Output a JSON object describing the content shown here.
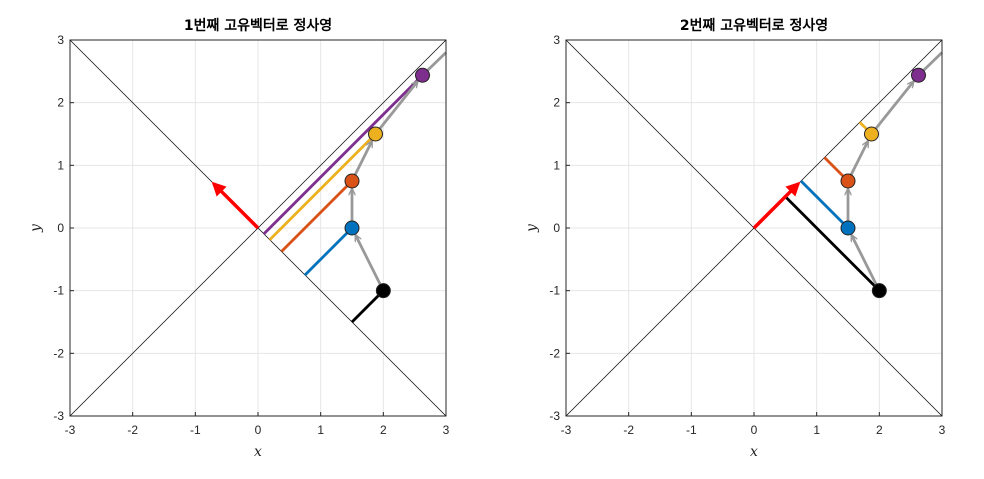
{
  "chart_data": [
    {
      "type": "line",
      "title": "1번째 고유벡터로 정사영",
      "xlabel": "x",
      "ylabel": "y",
      "xlim": [
        -3,
        3
      ],
      "ylim": [
        -3,
        3
      ],
      "xticks": [
        -3,
        -2,
        -1,
        0,
        1,
        2,
        3
      ],
      "yticks": [
        -3,
        -2,
        -1,
        0,
        1,
        2,
        3
      ],
      "grid": true,
      "eigenlines": [
        {
          "slope": 1
        },
        {
          "slope": -1
        }
      ],
      "arrow": {
        "from": [
          0,
          0
        ],
        "to": [
          -0.7071,
          0.7071
        ],
        "color": "#ff0000"
      },
      "trajectory": {
        "color": "#999999",
        "points": [
          [
            2,
            -1
          ],
          [
            1.5,
            0
          ],
          [
            1.5,
            0.75
          ],
          [
            1.875,
            1.5
          ],
          [
            2.625,
            2.4375
          ]
        ],
        "extension_to": [
          3,
          2.8
        ]
      },
      "states": [
        {
          "x": 2,
          "y": -1,
          "color": "#000000",
          "proj": [
            1.5,
            -1.5
          ]
        },
        {
          "x": 1.5,
          "y": 0,
          "color": "#0072bd",
          "proj": [
            0.75,
            -0.75
          ]
        },
        {
          "x": 1.5,
          "y": 0.75,
          "color": "#d95319",
          "proj": [
            0.375,
            -0.375
          ]
        },
        {
          "x": 1.875,
          "y": 1.5,
          "color": "#edb120",
          "proj": [
            0.1875,
            -0.1875
          ]
        },
        {
          "x": 2.625,
          "y": 2.4375,
          "color": "#7e2f8e",
          "proj": [
            0.09375,
            -0.09375
          ]
        }
      ]
    },
    {
      "type": "line",
      "title": "2번째 고유벡터로 정사영",
      "xlabel": "x",
      "ylabel": "y",
      "xlim": [
        -3,
        3
      ],
      "ylim": [
        -3,
        3
      ],
      "xticks": [
        -3,
        -2,
        -1,
        0,
        1,
        2,
        3
      ],
      "yticks": [
        -3,
        -2,
        -1,
        0,
        1,
        2,
        3
      ],
      "grid": true,
      "eigenlines": [
        {
          "slope": 1
        },
        {
          "slope": -1
        }
      ],
      "arrow": {
        "from": [
          0,
          0
        ],
        "to": [
          0.7071,
          0.7071
        ],
        "color": "#ff0000"
      },
      "trajectory": {
        "color": "#999999",
        "points": [
          [
            2,
            -1
          ],
          [
            1.5,
            0
          ],
          [
            1.5,
            0.75
          ],
          [
            1.875,
            1.5
          ],
          [
            2.625,
            2.4375
          ]
        ],
        "extension_to": [
          3,
          2.8
        ]
      },
      "states": [
        {
          "x": 2,
          "y": -1,
          "color": "#000000",
          "proj": [
            0.5,
            0.5
          ]
        },
        {
          "x": 1.5,
          "y": 0,
          "color": "#0072bd",
          "proj": [
            0.75,
            0.75
          ]
        },
        {
          "x": 1.5,
          "y": 0.75,
          "color": "#d95319",
          "proj": [
            1.125,
            1.125
          ]
        },
        {
          "x": 1.875,
          "y": 1.5,
          "color": "#edb120",
          "proj": [
            1.6875,
            1.6875
          ]
        },
        {
          "x": 2.625,
          "y": 2.4375,
          "color": "#7e2f8e",
          "proj": [
            2.53125,
            2.53125
          ]
        }
      ]
    }
  ]
}
